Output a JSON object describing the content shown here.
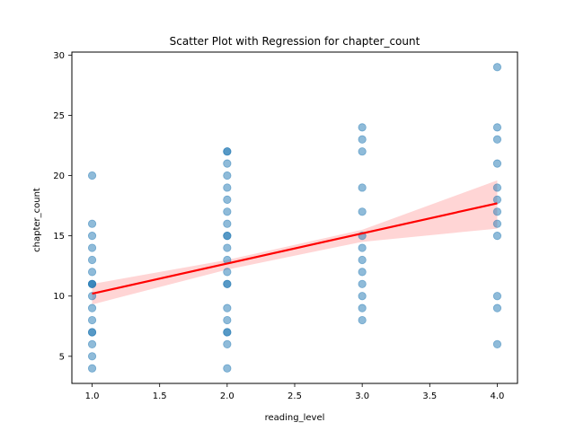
{
  "chart_data": {
    "type": "scatter",
    "title": "Scatter Plot with Regression for chapter_count",
    "xlabel": "reading_level",
    "ylabel": "chapter_count",
    "xlim": [
      0.85,
      4.15
    ],
    "ylim": [
      2.75,
      30.25
    ],
    "xticks": [
      1.0,
      1.5,
      2.0,
      2.5,
      3.0,
      3.5,
      4.0
    ],
    "xtick_labels": [
      "1.0",
      "1.5",
      "2.0",
      "2.5",
      "3.0",
      "3.5",
      "4.0"
    ],
    "yticks": [
      5,
      10,
      15,
      20,
      25,
      30
    ],
    "ytick_labels": [
      "5",
      "10",
      "15",
      "20",
      "25",
      "30"
    ],
    "grid": false,
    "points": [
      [
        1,
        4
      ],
      [
        1,
        5
      ],
      [
        1,
        6
      ],
      [
        1,
        7
      ],
      [
        1,
        7
      ],
      [
        1,
        8
      ],
      [
        1,
        9
      ],
      [
        1,
        10
      ],
      [
        1,
        11
      ],
      [
        1,
        11
      ],
      [
        1,
        11
      ],
      [
        1,
        12
      ],
      [
        1,
        13
      ],
      [
        1,
        14
      ],
      [
        1,
        15
      ],
      [
        1,
        16
      ],
      [
        1,
        20
      ],
      [
        2,
        4
      ],
      [
        2,
        6
      ],
      [
        2,
        7
      ],
      [
        2,
        7
      ],
      [
        2,
        8
      ],
      [
        2,
        9
      ],
      [
        2,
        11
      ],
      [
        2,
        11
      ],
      [
        2,
        12
      ],
      [
        2,
        13
      ],
      [
        2,
        14
      ],
      [
        2,
        15
      ],
      [
        2,
        15
      ],
      [
        2,
        16
      ],
      [
        2,
        17
      ],
      [
        2,
        18
      ],
      [
        2,
        19
      ],
      [
        2,
        20
      ],
      [
        2,
        21
      ],
      [
        2,
        22
      ],
      [
        2,
        22
      ],
      [
        3,
        8
      ],
      [
        3,
        9
      ],
      [
        3,
        10
      ],
      [
        3,
        11
      ],
      [
        3,
        12
      ],
      [
        3,
        13
      ],
      [
        3,
        14
      ],
      [
        3,
        15
      ],
      [
        3,
        17
      ],
      [
        3,
        19
      ],
      [
        3,
        22
      ],
      [
        3,
        23
      ],
      [
        3,
        24
      ],
      [
        4,
        6
      ],
      [
        4,
        9
      ],
      [
        4,
        10
      ],
      [
        4,
        15
      ],
      [
        4,
        16
      ],
      [
        4,
        17
      ],
      [
        4,
        18
      ],
      [
        4,
        19
      ],
      [
        4,
        21
      ],
      [
        4,
        23
      ],
      [
        4,
        24
      ],
      [
        4,
        29
      ]
    ],
    "point_color": "#1f77b4",
    "regression": {
      "line": [
        [
          1,
          10.2
        ],
        [
          4,
          17.7
        ]
      ],
      "ci_upper": [
        [
          1,
          11.0
        ],
        [
          2,
          13.0
        ],
        [
          3,
          15.5
        ],
        [
          4,
          19.6
        ]
      ],
      "ci_lower": [
        [
          1,
          9.3
        ],
        [
          2,
          12.2
        ],
        [
          3,
          14.5
        ],
        [
          4,
          15.6
        ]
      ],
      "line_color": "#ff0000",
      "band_color": "#ffb3b3"
    }
  }
}
